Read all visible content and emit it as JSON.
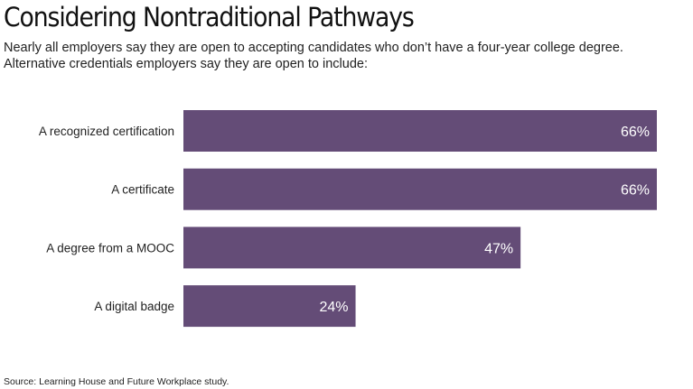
{
  "header": {
    "title": "Considering Nontraditional Pathways",
    "subtitle_line1": "Nearly all employers say they are open to accepting candidates who don’t have a four-year college degree.",
    "subtitle_line2": "Alternative credentials employers say they are open to include:"
  },
  "footer": {
    "source": "Source: Learning House and Future Workplace study."
  },
  "colors": {
    "bar": "#644c77",
    "bar_label": "#ffffff",
    "category_label": "#222222"
  },
  "chart_data": {
    "type": "bar",
    "orientation": "horizontal",
    "categories": [
      "A recognized certification",
      "A certificate",
      "A degree from a MOOC",
      "A digital badge"
    ],
    "values": [
      66,
      66,
      47,
      24
    ],
    "value_labels": [
      "66%",
      "66%",
      "47%",
      "24%"
    ],
    "unit": "%",
    "xlim": [
      0,
      66
    ],
    "grid": false,
    "legend": "none"
  }
}
